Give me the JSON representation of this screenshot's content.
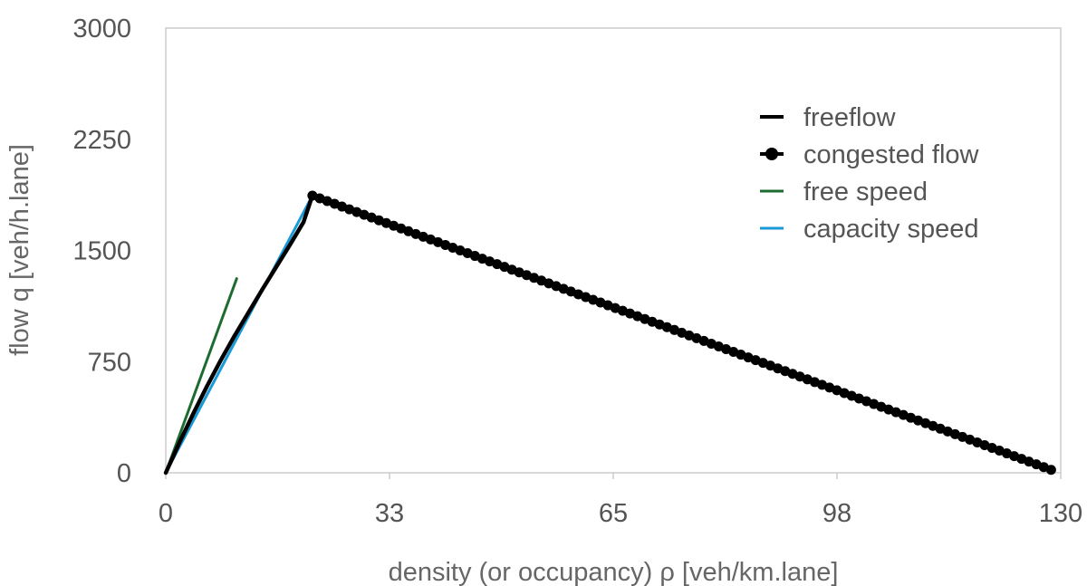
{
  "chart_data": {
    "type": "line",
    "title": "",
    "xlabel": "density (or occupancy) ρ [veh/km.lane]",
    "ylabel": "flow q [veh/h.lane]",
    "xlim": [
      0,
      130
    ],
    "ylim": [
      0,
      3000
    ],
    "x_ticks": [
      "0",
      "33",
      "65",
      "98",
      "130"
    ],
    "y_ticks": [
      "0",
      "750",
      "1500",
      "2250",
      "3000"
    ],
    "x_tick_values": [
      0,
      32.5,
      65,
      97.5,
      130
    ],
    "y_tick_values": [
      0,
      750,
      1500,
      2250,
      3000
    ],
    "grid": false,
    "legend_position": "top-right",
    "series": [
      {
        "name": "freeflow",
        "style": "line",
        "color": "#000000",
        "x": [
          0,
          2,
          4,
          6,
          8,
          10,
          12,
          14,
          16,
          18,
          20,
          21.3
        ],
        "y": [
          0,
          205,
          400,
          585,
          760,
          925,
          1080,
          1235,
          1385,
          1535,
          1690,
          1870
        ]
      },
      {
        "name": "congested flow",
        "style": "markers",
        "color": "#000000",
        "x": [
          21.3,
          128.6
        ],
        "y": [
          1870,
          20
        ]
      },
      {
        "name": "free speed",
        "style": "line",
        "color": "#1e6b30",
        "x": [
          0,
          10.3
        ],
        "y": [
          0,
          1310
        ]
      },
      {
        "name": "capacity speed",
        "style": "line",
        "color": "#1a9ad6",
        "x": [
          0,
          21.3
        ],
        "y": [
          0,
          1870
        ]
      }
    ]
  }
}
